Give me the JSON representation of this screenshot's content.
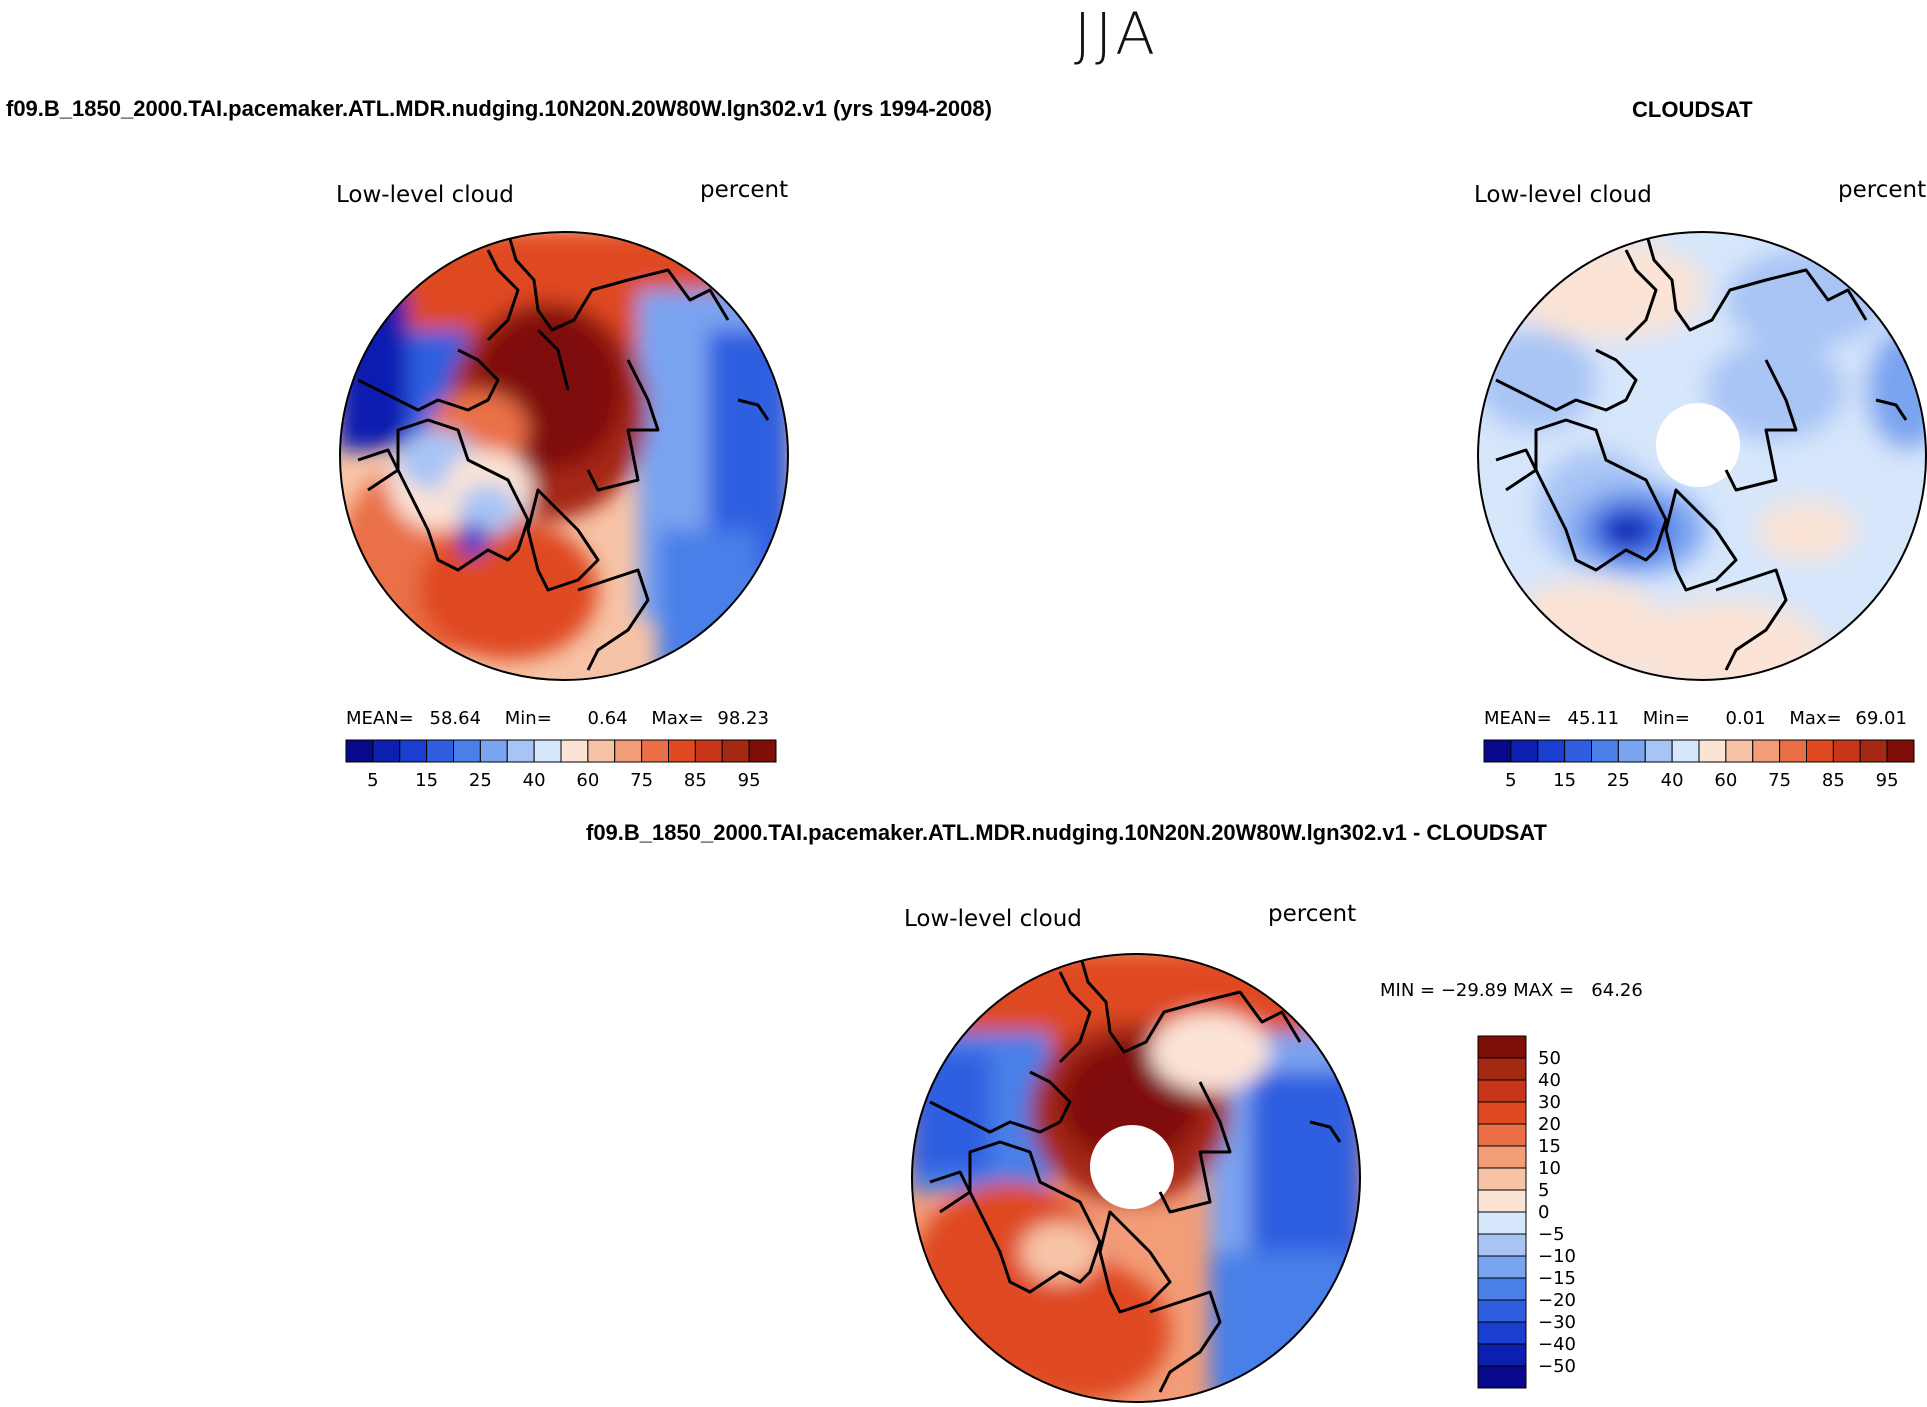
{
  "figure": {
    "season": "JJA",
    "diff_title": "f09.B_1850_2000.TAI.pacemaker.ATL.MDR.nudging.10N20N.20W80W.lgn302.v1 - CLOUDSAT"
  },
  "colors": {
    "abs_scale": [
      "#08088c",
      "#0d1fb0",
      "#1a3fd0",
      "#2f5fe0",
      "#4a7fe8",
      "#7aa3f0",
      "#a8c4f5",
      "#d6e6fb",
      "#fbe3d6",
      "#f7c3a6",
      "#f29c78",
      "#ea6f47",
      "#df4a22",
      "#c8361a",
      "#a52812",
      "#800e08"
    ],
    "diff_scale": [
      "#08088c",
      "#0d1fb0",
      "#1a3fd0",
      "#2f5fe0",
      "#4a7fe8",
      "#7aa3f0",
      "#a8c4f5",
      "#d6e6fb",
      "#fbe3d6",
      "#f7c3a6",
      "#f29c78",
      "#ea6f47",
      "#df4a22",
      "#c8361a",
      "#a52812",
      "#800e08"
    ],
    "coast": "#000000"
  },
  "chart_data": [
    {
      "type": "heatmap",
      "projection": "north-polar-stereographic",
      "title": "f09.B_1850_2000.TAI.pacemaker.ATL.MDR.nudging.10N20N.20W80W.lgn302.v1 (yrs 1994-2008)",
      "variable": "Low-level cloud",
      "units": "percent",
      "stats": {
        "mean_label": "MEAN=",
        "mean": "58.64",
        "min_label": "Min=",
        "min": "0.64",
        "max_label": "Max=",
        "max": "98.23"
      },
      "colorbar": {
        "orientation": "horizontal",
        "levels": [
          5,
          10,
          15,
          20,
          25,
          30,
          40,
          50,
          60,
          70,
          75,
          80,
          85,
          90,
          95
        ],
        "tick_labels": [
          "5",
          "15",
          "25",
          "40",
          "60",
          "75",
          "85",
          "95"
        ]
      }
    },
    {
      "type": "heatmap",
      "projection": "north-polar-stereographic",
      "title": "CLOUDSAT",
      "variable": "Low-level cloud",
      "units": "percent",
      "stats": {
        "mean_label": "MEAN=",
        "mean": "45.11",
        "min_label": "Min=",
        "min": "0.01",
        "max_label": "Max=",
        "max": "69.01"
      },
      "colorbar": {
        "orientation": "horizontal",
        "levels": [
          5,
          10,
          15,
          20,
          25,
          30,
          40,
          50,
          60,
          70,
          75,
          80,
          85,
          90,
          95
        ],
        "tick_labels": [
          "5",
          "15",
          "25",
          "40",
          "60",
          "75",
          "85",
          "95"
        ]
      }
    },
    {
      "type": "heatmap",
      "projection": "north-polar-stereographic",
      "variable": "Low-level cloud",
      "units": "percent",
      "stats_text": "MIN = −29.89 MAX =   64.26",
      "colorbar": {
        "orientation": "vertical",
        "levels": [
          -50,
          -40,
          -30,
          -20,
          -15,
          -10,
          -5,
          0,
          5,
          10,
          15,
          20,
          30,
          40,
          50
        ],
        "tick_labels": [
          "50",
          "40",
          "30",
          "20",
          "15",
          "10",
          "5",
          "0",
          "−5",
          "−10",
          "−15",
          "−20",
          "−30",
          "−40",
          "−50"
        ]
      }
    }
  ]
}
